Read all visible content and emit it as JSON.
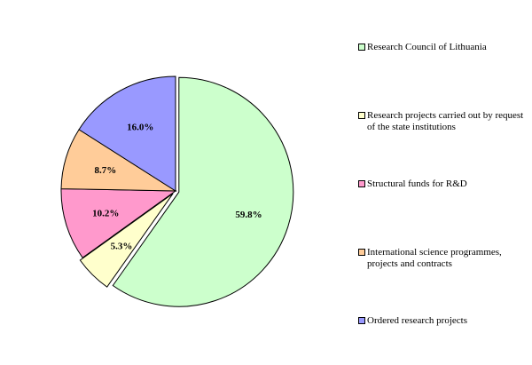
{
  "chart_data": {
    "type": "pie",
    "labels": [
      "Research Council of Lithuania",
      "Research projects carried out by request of the state institutions",
      "Structural funds for R&D",
      "International science programmes, projects and contracts",
      "Ordered research projects"
    ],
    "values": [
      59.8,
      5.3,
      10.2,
      8.7,
      16.0
    ],
    "value_labels": [
      "59.8%",
      "5.3%",
      "10.2%",
      "8.7%",
      "16.0%"
    ],
    "colors": [
      "#ccffcc",
      "#ffffcc",
      "#ff99cc",
      "#ffcc99",
      "#9999ff"
    ],
    "exploded": [
      true,
      true,
      false,
      false,
      false
    ],
    "start_angle": "12 o'clock",
    "direction": "clockwise",
    "legend_position": "right"
  }
}
